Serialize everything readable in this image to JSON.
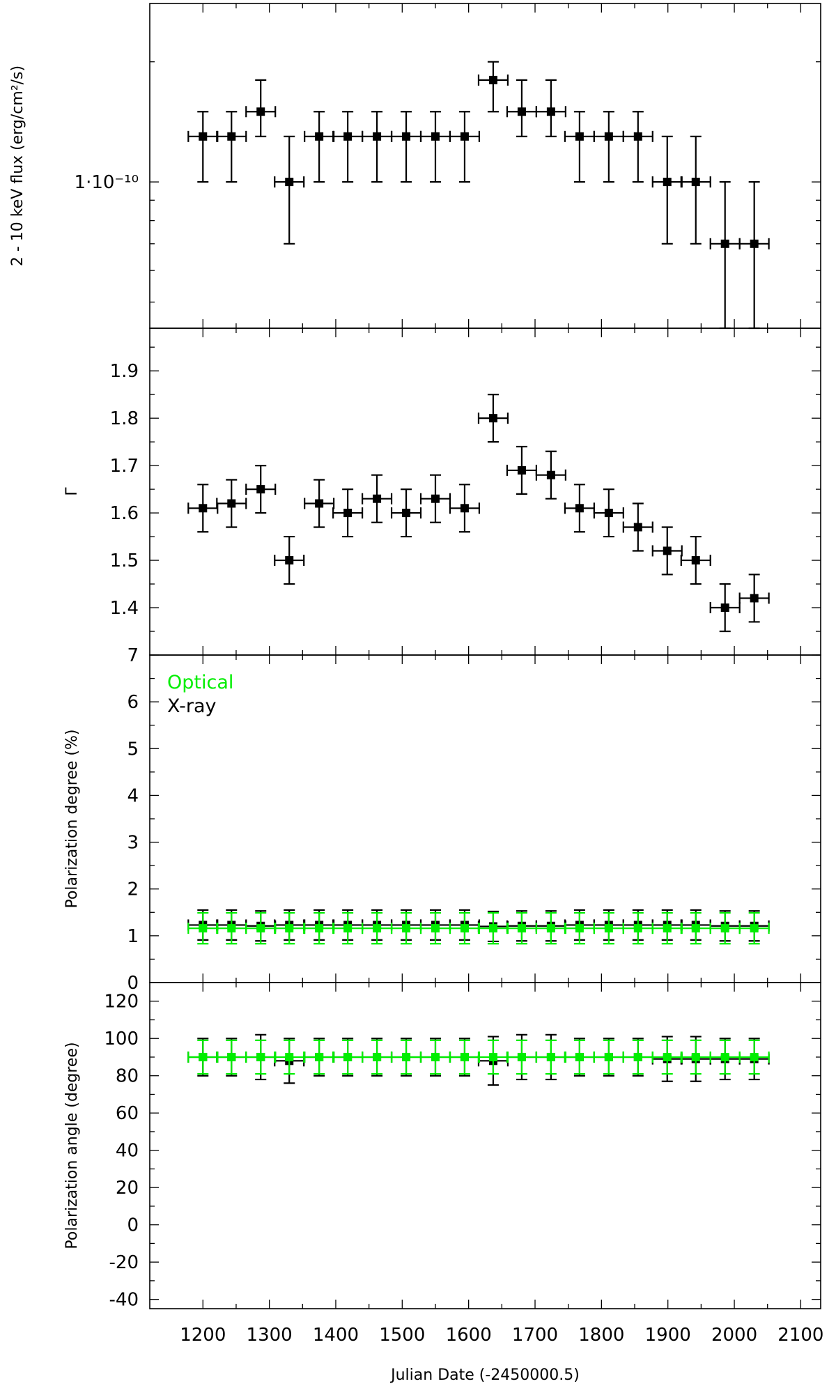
{
  "chart_data": [
    {
      "type": "scatter",
      "panel": "flux",
      "ylabel": "2 - 10 keV flux (erg/cm²/s)",
      "yscale": "log",
      "ylim": [
        4.3e-11,
        2.8e-10
      ],
      "yticks": [
        {
          "value": 1e-10,
          "label": "1·10⁻¹⁰"
        }
      ],
      "xlim": [
        1120,
        2130
      ],
      "grid": false,
      "series": [
        {
          "color": "#000000",
          "x": [
            1200,
            1243,
            1287,
            1330,
            1375,
            1418,
            1462,
            1506,
            1550,
            1594,
            1637,
            1680,
            1724,
            1767,
            1811,
            1855,
            1899,
            1942,
            1986,
            2030
          ],
          "xerr": [
            22,
            22,
            22,
            22,
            22,
            22,
            22,
            22,
            22,
            22,
            22,
            22,
            22,
            22,
            22,
            22,
            22,
            22,
            22,
            22
          ],
          "y": [
            1.3e-10,
            1.3e-10,
            1.5e-10,
            1e-10,
            1.3e-10,
            1.3e-10,
            1.3e-10,
            1.3e-10,
            1.3e-10,
            1.3e-10,
            1.8e-10,
            1.5e-10,
            1.5e-10,
            1.3e-10,
            1.3e-10,
            1.3e-10,
            1e-10,
            1e-10,
            7e-11,
            7e-11
          ],
          "ylow": [
            1e-10,
            1e-10,
            1.3e-10,
            7e-11,
            1e-10,
            1e-10,
            1e-10,
            1e-10,
            1e-10,
            1e-10,
            1.5e-10,
            1.3e-10,
            1.3e-10,
            1e-10,
            1e-10,
            1e-10,
            7e-11,
            7e-11,
            4.3e-11,
            4.3e-11
          ],
          "yhigh": [
            1.5e-10,
            1.5e-10,
            1.8e-10,
            1.3e-10,
            1.5e-10,
            1.5e-10,
            1.5e-10,
            1.5e-10,
            1.5e-10,
            1.5e-10,
            2e-10,
            1.8e-10,
            1.8e-10,
            1.5e-10,
            1.5e-10,
            1.5e-10,
            1.3e-10,
            1.3e-10,
            1e-10,
            1e-10
          ]
        }
      ]
    },
    {
      "type": "scatter",
      "panel": "index",
      "ylabel": "Γ",
      "ylim": [
        1.3,
        1.99
      ],
      "yticks": [
        1.4,
        1.5,
        1.6,
        1.7,
        1.8,
        1.9
      ],
      "xlim": [
        1120,
        2130
      ],
      "grid": false,
      "series": [
        {
          "color": "#000000",
          "x": [
            1200,
            1243,
            1287,
            1330,
            1375,
            1418,
            1462,
            1506,
            1550,
            1594,
            1637,
            1680,
            1724,
            1767,
            1811,
            1855,
            1899,
            1942,
            1986,
            2030
          ],
          "xerr": [
            22,
            22,
            22,
            22,
            22,
            22,
            22,
            22,
            22,
            22,
            22,
            22,
            22,
            22,
            22,
            22,
            22,
            22,
            22,
            22
          ],
          "y": [
            1.61,
            1.62,
            1.65,
            1.5,
            1.62,
            1.6,
            1.63,
            1.6,
            1.63,
            1.61,
            1.8,
            1.69,
            1.68,
            1.61,
            1.6,
            1.57,
            1.52,
            1.5,
            1.4,
            1.42
          ],
          "yerr": [
            0.05,
            0.05,
            0.05,
            0.05,
            0.05,
            0.05,
            0.05,
            0.05,
            0.05,
            0.05,
            0.05,
            0.05,
            0.05,
            0.05,
            0.05,
            0.05,
            0.05,
            0.05,
            0.05,
            0.05
          ]
        }
      ]
    },
    {
      "type": "scatter",
      "panel": "poldeg",
      "ylabel": "Polarization degree (%)",
      "ylim": [
        0,
        7
      ],
      "yticks": [
        0,
        1,
        2,
        3,
        4,
        5,
        6,
        7
      ],
      "xlim": [
        1120,
        2130
      ],
      "grid": false,
      "legend": {
        "placement": "top-left",
        "entries": [
          {
            "label": "Optical",
            "color": "#00ee00"
          },
          {
            "label": "X-ray",
            "color": "#000000"
          }
        ]
      },
      "series": [
        {
          "name": "X-ray",
          "color": "#000000",
          "x": [
            1200,
            1243,
            1287,
            1330,
            1375,
            1418,
            1462,
            1506,
            1550,
            1594,
            1637,
            1680,
            1724,
            1767,
            1811,
            1855,
            1899,
            1942,
            1986,
            2030
          ],
          "xerr": [
            22,
            22,
            22,
            22,
            22,
            22,
            22,
            22,
            22,
            22,
            22,
            22,
            22,
            22,
            22,
            22,
            22,
            22,
            22,
            22
          ],
          "y": [
            1.23,
            1.23,
            1.21,
            1.23,
            1.23,
            1.23,
            1.23,
            1.23,
            1.23,
            1.23,
            1.2,
            1.21,
            1.21,
            1.23,
            1.23,
            1.23,
            1.23,
            1.23,
            1.21,
            1.21
          ],
          "yerr": [
            0.32,
            0.32,
            0.32,
            0.32,
            0.32,
            0.32,
            0.32,
            0.32,
            0.32,
            0.32,
            0.32,
            0.32,
            0.32,
            0.32,
            0.32,
            0.32,
            0.32,
            0.32,
            0.32,
            0.32
          ]
        },
        {
          "name": "Optical",
          "color": "#00ee00",
          "x": [
            1200,
            1243,
            1287,
            1330,
            1375,
            1418,
            1462,
            1506,
            1550,
            1594,
            1637,
            1680,
            1724,
            1767,
            1811,
            1855,
            1899,
            1942,
            1986,
            2030
          ],
          "xerr": [
            22,
            22,
            22,
            22,
            22,
            22,
            22,
            22,
            22,
            22,
            22,
            22,
            22,
            22,
            22,
            22,
            22,
            22,
            22,
            22
          ],
          "y": [
            1.16,
            1.16,
            1.16,
            1.16,
            1.16,
            1.16,
            1.16,
            1.16,
            1.16,
            1.16,
            1.16,
            1.16,
            1.16,
            1.16,
            1.16,
            1.16,
            1.16,
            1.16,
            1.16,
            1.16
          ],
          "yerr": [
            0.33,
            0.33,
            0.33,
            0.33,
            0.33,
            0.33,
            0.33,
            0.33,
            0.33,
            0.33,
            0.33,
            0.33,
            0.33,
            0.33,
            0.33,
            0.33,
            0.33,
            0.33,
            0.33,
            0.33
          ]
        }
      ]
    },
    {
      "type": "scatter",
      "panel": "polang",
      "ylabel": "Polarization angle (degree)",
      "xlabel": "Julian Date (-2450000.5)",
      "ylim": [
        -45,
        130
      ],
      "yticks": [
        -40,
        -20,
        0,
        20,
        40,
        60,
        80,
        100,
        120
      ],
      "xlim": [
        1120,
        2130
      ],
      "xticks": [
        1200,
        1300,
        1400,
        1500,
        1600,
        1700,
        1800,
        1900,
        2000,
        2100
      ],
      "grid": false,
      "series": [
        {
          "name": "X-ray",
          "color": "#000000",
          "x": [
            1200,
            1243,
            1287,
            1330,
            1375,
            1418,
            1462,
            1506,
            1550,
            1594,
            1637,
            1680,
            1724,
            1767,
            1811,
            1855,
            1899,
            1942,
            1986,
            2030
          ],
          "xerr": [
            22,
            22,
            22,
            22,
            22,
            22,
            22,
            22,
            22,
            22,
            22,
            22,
            22,
            22,
            22,
            22,
            22,
            22,
            22,
            22
          ],
          "y": [
            90,
            90,
            90,
            88,
            90,
            90,
            90,
            90,
            90,
            90,
            88,
            90,
            90,
            90,
            90,
            90,
            89,
            89,
            89,
            89
          ],
          "yerr": [
            10,
            10,
            12,
            12,
            10,
            10,
            10,
            10,
            10,
            10,
            13,
            12,
            12,
            10,
            10,
            10,
            12,
            12,
            11,
            11
          ]
        },
        {
          "name": "Optical",
          "color": "#00ee00",
          "x": [
            1200,
            1243,
            1287,
            1330,
            1375,
            1418,
            1462,
            1506,
            1550,
            1594,
            1637,
            1680,
            1724,
            1767,
            1811,
            1855,
            1899,
            1942,
            1986,
            2030
          ],
          "xerr": [
            22,
            22,
            22,
            22,
            22,
            22,
            22,
            22,
            22,
            22,
            22,
            22,
            22,
            22,
            22,
            22,
            22,
            22,
            22,
            22
          ],
          "y": [
            90,
            90,
            90,
            90,
            90,
            90,
            90,
            90,
            90,
            90,
            90,
            90,
            90,
            90,
            90,
            90,
            90,
            90,
            90,
            90
          ],
          "yerr": [
            9,
            9,
            9,
            9,
            9,
            9,
            9,
            9,
            9,
            9,
            9,
            9,
            9,
            9,
            9,
            9,
            9,
            9,
            9,
            9
          ]
        }
      ]
    }
  ]
}
